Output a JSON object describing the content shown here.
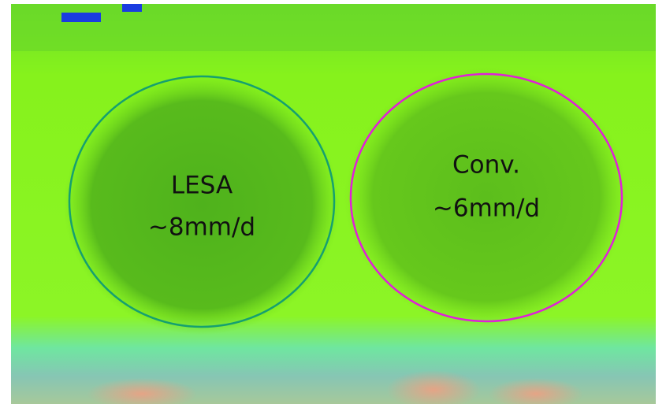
{
  "annotations": [
    {
      "lines": [
        "LESA",
        "~8mm/d"
      ]
    },
    {
      "lines": [
        "Conv.",
        "~6mm/d"
      ]
    }
  ]
}
